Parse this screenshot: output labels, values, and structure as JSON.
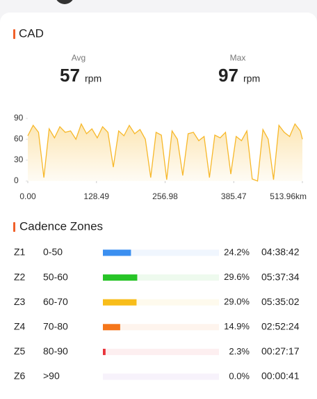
{
  "header": {
    "title": "CAD",
    "stats": [
      {
        "label": "Avg",
        "value": "57",
        "unit": "rpm"
      },
      {
        "label": "Max",
        "value": "97",
        "unit": "rpm"
      }
    ]
  },
  "chart_data": {
    "type": "area",
    "color": "#f7b82a",
    "x": [
      0,
      10,
      20,
      30,
      40,
      50,
      60,
      70,
      80,
      90,
      100,
      110,
      120,
      130,
      140,
      150,
      160,
      170,
      180,
      190,
      200,
      210,
      220,
      230,
      240,
      250,
      260,
      270,
      280,
      290,
      300,
      310,
      320,
      330,
      340,
      350,
      360,
      370,
      380,
      390,
      400,
      410,
      420,
      430,
      440,
      450,
      460,
      470,
      480,
      490,
      500,
      510,
      513.96
    ],
    "values": [
      65,
      80,
      70,
      5,
      75,
      62,
      78,
      70,
      72,
      60,
      82,
      68,
      75,
      62,
      78,
      70,
      20,
      72,
      65,
      80,
      68,
      74,
      60,
      5,
      70,
      66,
      2,
      72,
      60,
      8,
      68,
      70,
      58,
      64,
      5,
      66,
      62,
      70,
      10,
      64,
      58,
      72,
      3,
      0,
      74,
      60,
      2,
      80,
      70,
      64,
      82,
      72,
      60
    ],
    "xlim": [
      0,
      513.96
    ],
    "xticks": [
      {
        "value": 0,
        "label": "0.00"
      },
      128.49,
      256.98,
      385.47,
      {
        "value": 513.96,
        "label": "513.96km"
      }
    ],
    "ylim": [
      0,
      95
    ],
    "yticks": [
      0,
      30,
      60,
      90
    ]
  },
  "zones": {
    "title": "Cadence Zones",
    "rows": [
      {
        "name": "Z1",
        "range": "0-50",
        "value": 24.2,
        "value_label": "24.2%",
        "time": "04:38:42",
        "color": "#3b8ff0"
      },
      {
        "name": "Z2",
        "range": "50-60",
        "value": 29.6,
        "value_label": "29.6%",
        "time": "05:37:34",
        "color": "#27c427"
      },
      {
        "name": "Z3",
        "range": "60-70",
        "value": 29.0,
        "value_label": "29.0%",
        "time": "05:35:02",
        "color": "#f8bd1a"
      },
      {
        "name": "Z4",
        "range": "70-80",
        "value": 14.9,
        "value_label": "14.9%",
        "time": "02:52:24",
        "color": "#f5761a"
      },
      {
        "name": "Z5",
        "range": "80-90",
        "value": 2.3,
        "value_label": "2.3%",
        "time": "00:27:17",
        "color": "#e8333a"
      },
      {
        "name": "Z6",
        "range": ">90",
        "value": 0.0,
        "value_label": "0.0%",
        "time": "00:00:41",
        "color": "#9b59d0"
      }
    ]
  }
}
